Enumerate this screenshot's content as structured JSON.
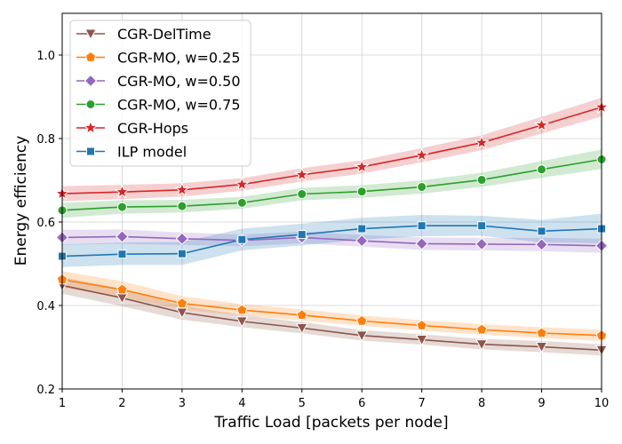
{
  "chart_data": {
    "type": "line",
    "title": "",
    "xlabel": "Traffic Load [packets per node]",
    "ylabel": "Energy efficiency",
    "xlim": [
      1,
      10
    ],
    "ylim": [
      0.2,
      1.1
    ],
    "grid": true,
    "legend_position": "top-left",
    "x": [
      1,
      2,
      3,
      4,
      5,
      6,
      7,
      8,
      9,
      10
    ],
    "x_ticks": [
      "1",
      "2",
      "3",
      "4",
      "5",
      "6",
      "7",
      "8",
      "9",
      "10"
    ],
    "y_ticks": [
      0.2,
      0.4,
      0.6,
      0.8,
      1.0
    ],
    "y_tick_labels": [
      "0.2",
      "0.4",
      "0.6",
      "0.8",
      "1.0"
    ],
    "series": [
      {
        "name": "CGR-DelTime",
        "color": "#8c564b",
        "marker": "triangle-down",
        "values": [
          0.448,
          0.418,
          0.383,
          0.362,
          0.346,
          0.328,
          0.318,
          0.307,
          0.301,
          0.293
        ],
        "ci_low": [
          0.428,
          0.398,
          0.366,
          0.348,
          0.333,
          0.316,
          0.306,
          0.295,
          0.288,
          0.28
        ],
        "ci_high": [
          0.468,
          0.44,
          0.4,
          0.377,
          0.36,
          0.341,
          0.331,
          0.32,
          0.315,
          0.307
        ]
      },
      {
        "name": "CGR-MO, w=0.25",
        "color": "#ff7f0e",
        "marker": "pentagon",
        "values": [
          0.462,
          0.438,
          0.405,
          0.389,
          0.377,
          0.363,
          0.352,
          0.342,
          0.334,
          0.328
        ],
        "ci_low": [
          0.442,
          0.42,
          0.39,
          0.376,
          0.364,
          0.351,
          0.34,
          0.33,
          0.322,
          0.315
        ],
        "ci_high": [
          0.482,
          0.458,
          0.422,
          0.403,
          0.391,
          0.376,
          0.365,
          0.355,
          0.348,
          0.342
        ]
      },
      {
        "name": "CGR-MO, w=0.50",
        "color": "#9467bd",
        "marker": "diamond",
        "values": [
          0.563,
          0.565,
          0.56,
          0.556,
          0.563,
          0.555,
          0.548,
          0.547,
          0.546,
          0.543
        ],
        "ci_low": [
          0.545,
          0.548,
          0.545,
          0.542,
          0.549,
          0.541,
          0.533,
          0.532,
          0.53,
          0.526
        ],
        "ci_high": [
          0.581,
          0.582,
          0.575,
          0.57,
          0.577,
          0.569,
          0.563,
          0.562,
          0.562,
          0.56
        ]
      },
      {
        "name": "CGR-MO, w=0.75",
        "color": "#2ca02c",
        "marker": "circle",
        "values": [
          0.628,
          0.636,
          0.638,
          0.646,
          0.667,
          0.673,
          0.684,
          0.701,
          0.726,
          0.75
        ],
        "ci_low": [
          0.61,
          0.62,
          0.623,
          0.632,
          0.652,
          0.658,
          0.668,
          0.684,
          0.706,
          0.727
        ],
        "ci_high": [
          0.646,
          0.652,
          0.653,
          0.66,
          0.682,
          0.688,
          0.7,
          0.718,
          0.746,
          0.774
        ]
      },
      {
        "name": "CGR-Hops",
        "color": "#d62728",
        "marker": "star",
        "values": [
          0.668,
          0.672,
          0.677,
          0.69,
          0.713,
          0.732,
          0.76,
          0.79,
          0.832,
          0.875
        ],
        "ci_low": [
          0.65,
          0.655,
          0.661,
          0.675,
          0.697,
          0.716,
          0.743,
          0.772,
          0.812,
          0.853
        ],
        "ci_high": [
          0.686,
          0.689,
          0.693,
          0.705,
          0.729,
          0.748,
          0.777,
          0.808,
          0.852,
          0.898
        ]
      },
      {
        "name": "ILP model",
        "color": "#1f77b4",
        "marker": "square",
        "values": [
          0.518,
          0.523,
          0.524,
          0.558,
          0.57,
          0.584,
          0.591,
          0.591,
          0.578,
          0.584
        ],
        "ci_low": [
          0.492,
          0.497,
          0.497,
          0.532,
          0.544,
          0.558,
          0.566,
          0.567,
          0.551,
          0.549
        ],
        "ci_high": [
          0.546,
          0.551,
          0.552,
          0.584,
          0.596,
          0.61,
          0.617,
          0.615,
          0.605,
          0.62
        ]
      }
    ]
  }
}
